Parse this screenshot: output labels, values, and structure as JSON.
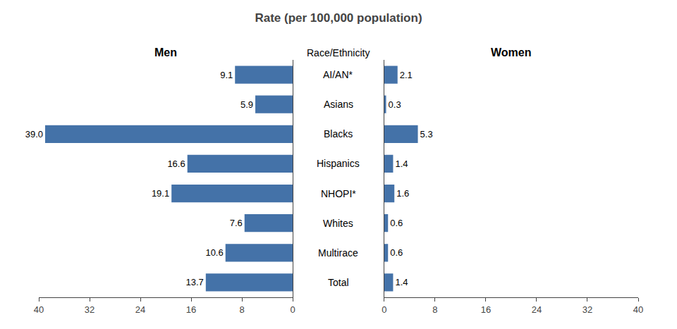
{
  "chart_data": {
    "type": "bar",
    "orientation": "horizontal",
    "title": "Rate (per 100,000 population)",
    "ylabel": "Race/Ethnicity",
    "categories": [
      "AI/AN*",
      "Asians",
      "Blacks",
      "Hispanics",
      "NHOPI*",
      "Whites",
      "Multirace",
      "Total"
    ],
    "series": [
      {
        "name": "Men",
        "color": "#4472A8",
        "values": [
          9.1,
          5.9,
          39.0,
          16.6,
          19.1,
          7.6,
          10.6,
          13.7
        ],
        "value_labels": [
          "9.1",
          "5.9",
          "39.0",
          "16.6",
          "19.1",
          "7.6",
          "10.6",
          "13.7"
        ]
      },
      {
        "name": "Women",
        "color": "#4472A8",
        "values": [
          2.1,
          0.3,
          5.3,
          1.4,
          1.6,
          0.6,
          0.6,
          1.4
        ]
      }
    ],
    "xlim": [
      0,
      40
    ],
    "xticks": [
      0,
      8,
      16,
      24,
      32,
      40
    ],
    "grid": false,
    "data_labels": true
  }
}
